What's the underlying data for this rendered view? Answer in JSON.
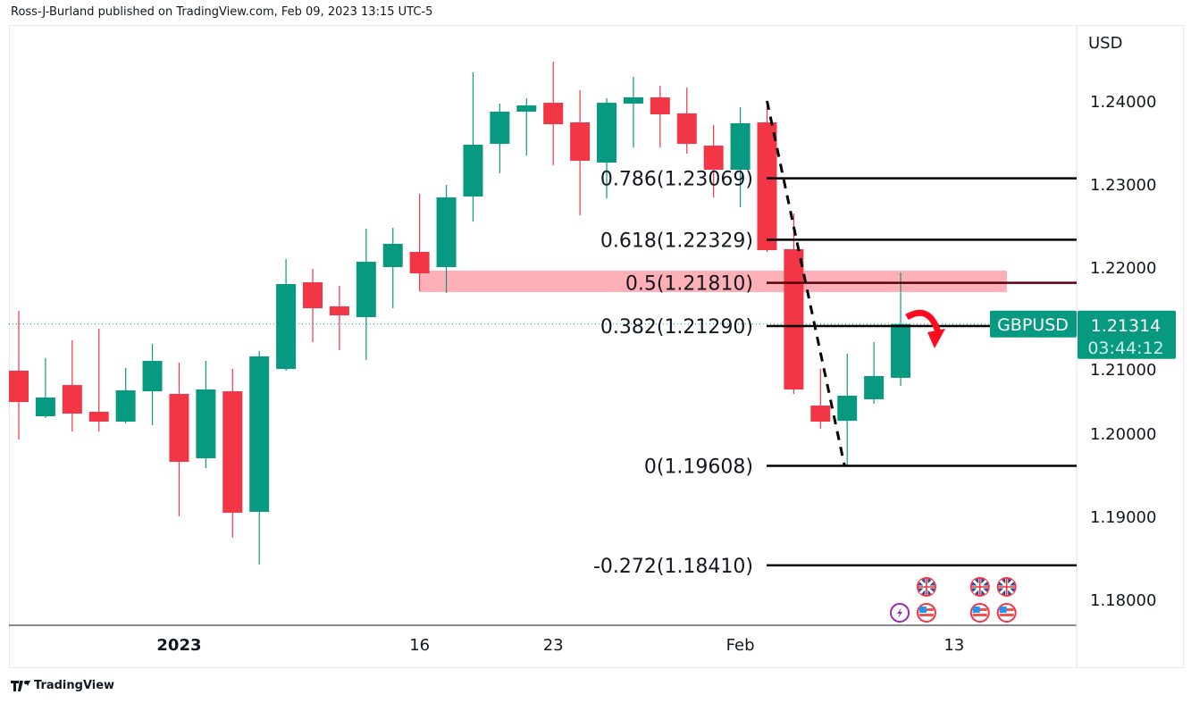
{
  "header": {
    "published": "Ross-J-Burland published on TradingView.com, Feb 09, 2023 13:15 UTC-5"
  },
  "footer": {
    "logo_text": "TradingView"
  },
  "colors": {
    "up": "#089981",
    "down": "#f23645",
    "zone": "#ffb0b6",
    "arrow": "#ff0a1e"
  },
  "chart_data": {
    "type": "candlestick",
    "symbol": "GBPUSD",
    "currency": "USD",
    "last_price": "1.21314",
    "countdown": "03:44:12",
    "ylim": [
      1.175,
      1.25
    ],
    "y_ticks": [
      "1.24000",
      "1.23000",
      "1.22000",
      "1.21000",
      "1.20000",
      "1.19000",
      "1.18000"
    ],
    "x_ticks": [
      {
        "label": "2023",
        "index": 6,
        "bold": true
      },
      {
        "label": "16",
        "index": 15
      },
      {
        "label": "23",
        "index": 20
      },
      {
        "label": "Feb",
        "index": 27
      },
      {
        "label": "13",
        "index": 35
      }
    ],
    "candles": [
      {
        "date": "2022-12-22",
        "o": 1.20753,
        "h": 1.21473,
        "l": 1.19925,
        "c": 1.20376
      },
      {
        "date": "2022-12-23",
        "o": 1.20204,
        "h": 1.20903,
        "l": 1.20183,
        "c": 1.2043
      },
      {
        "date": "2022-12-27",
        "o": 1.2058,
        "h": 1.21118,
        "l": 1.20021,
        "c": 1.20236
      },
      {
        "date": "2022-12-28",
        "o": 1.20258,
        "h": 1.21258,
        "l": 1.20021,
        "c": 1.2014
      },
      {
        "date": "2022-12-29",
        "o": 1.2014,
        "h": 1.20785,
        "l": 1.2012,
        "c": 1.20516
      },
      {
        "date": "2022-12-30",
        "o": 1.20505,
        "h": 1.21075,
        "l": 1.20097,
        "c": 1.20871
      },
      {
        "date": "2023-01-03",
        "o": 1.20473,
        "h": 1.20849,
        "l": 1.19,
        "c": 1.19656
      },
      {
        "date": "2023-01-04",
        "o": 1.19699,
        "h": 1.20871,
        "l": 1.1958,
        "c": 1.20527
      },
      {
        "date": "2023-01-05",
        "o": 1.20505,
        "h": 1.20774,
        "l": 1.18742,
        "c": 1.19043
      },
      {
        "date": "2023-01-06",
        "o": 1.19054,
        "h": 1.20989,
        "l": 1.18419,
        "c": 1.20925
      },
      {
        "date": "2023-01-09",
        "o": 1.20774,
        "h": 1.22097,
        "l": 1.20753,
        "c": 1.21796
      },
      {
        "date": "2023-01-10",
        "o": 1.21817,
        "h": 1.21978,
        "l": 1.21097,
        "c": 1.21505
      },
      {
        "date": "2023-01-11",
        "o": 1.21527,
        "h": 1.21774,
        "l": 1.21,
        "c": 1.21419
      },
      {
        "date": "2023-01-12",
        "o": 1.21398,
        "h": 1.22462,
        "l": 1.20882,
        "c": 1.22064
      },
      {
        "date": "2023-01-13",
        "o": 1.22,
        "h": 1.22473,
        "l": 1.21505,
        "c": 1.2228
      },
      {
        "date": "2023-01-16",
        "o": 1.22183,
        "h": 1.22882,
        "l": 1.2171,
        "c": 1.21925
      },
      {
        "date": "2023-01-17",
        "o": 1.22,
        "h": 1.22989,
        "l": 1.21688,
        "c": 1.22839
      },
      {
        "date": "2023-01-18",
        "o": 1.2285,
        "h": 1.24344,
        "l": 1.22548,
        "c": 1.23473
      },
      {
        "date": "2023-01-19",
        "o": 1.23484,
        "h": 1.23968,
        "l": 1.23129,
        "c": 1.23871
      },
      {
        "date": "2023-01-20",
        "o": 1.23871,
        "h": 1.24032,
        "l": 1.23344,
        "c": 1.23946
      },
      {
        "date": "2023-01-23",
        "o": 1.23978,
        "h": 1.24473,
        "l": 1.23226,
        "c": 1.2372
      },
      {
        "date": "2023-01-24",
        "o": 1.23742,
        "h": 1.24129,
        "l": 1.22624,
        "c": 1.2328
      },
      {
        "date": "2023-01-25",
        "o": 1.23258,
        "h": 1.24032,
        "l": 1.22828,
        "c": 1.23978
      },
      {
        "date": "2023-01-26",
        "o": 1.23968,
        "h": 1.2429,
        "l": 1.23441,
        "c": 1.24043
      },
      {
        "date": "2023-01-27",
        "o": 1.24043,
        "h": 1.24183,
        "l": 1.23441,
        "c": 1.23839
      },
      {
        "date": "2023-01-30",
        "o": 1.2385,
        "h": 1.24161,
        "l": 1.23366,
        "c": 1.23484
      },
      {
        "date": "2023-01-31",
        "o": 1.23462,
        "h": 1.2371,
        "l": 1.22839,
        "c": 1.23172
      },
      {
        "date": "2023-02-01",
        "o": 1.23172,
        "h": 1.23925,
        "l": 1.2272,
        "c": 1.23731
      },
      {
        "date": "2023-02-02",
        "o": 1.23742,
        "h": 1.24,
        "l": 1.22183,
        "c": 1.22204
      },
      {
        "date": "2023-02-03",
        "o": 1.22215,
        "h": 1.22645,
        "l": 1.20473,
        "c": 1.20527
      },
      {
        "date": "2023-02-06",
        "o": 1.20333,
        "h": 1.20774,
        "l": 1.20054,
        "c": 1.2014
      },
      {
        "date": "2023-02-07",
        "o": 1.2015,
        "h": 1.20957,
        "l": 1.19608,
        "c": 1.20452
      },
      {
        "date": "2023-02-08",
        "o": 1.20409,
        "h": 1.21097,
        "l": 1.20355,
        "c": 1.20688
      },
      {
        "date": "2023-02-09",
        "o": 1.20667,
        "h": 1.21935,
        "l": 1.2057,
        "c": 1.21314
      }
    ],
    "fib_levels": [
      {
        "label": "0.786(1.23069)",
        "price": 1.23069
      },
      {
        "label": "0.618(1.22329)",
        "price": 1.22329
      },
      {
        "label": "0.5(1.21810)",
        "price": 1.2181
      },
      {
        "label": "0.382(1.21290)",
        "price": 1.2129
      },
      {
        "label": "0(1.19608)",
        "price": 1.19608
      },
      {
        "label": "-0.272(1.18410)",
        "price": 1.1841
      }
    ],
    "resistance_zone": {
      "from": 1.21699,
      "to": 1.21957,
      "start_index": 15
    },
    "trend_line": {
      "from_index": 28,
      "from_price": 1.24,
      "to_index": 31,
      "to_price": 1.19608
    },
    "events": [
      {
        "icon": "lightning-icon",
        "index": 33,
        "row": 2
      },
      {
        "icon": "uk-flag-icon",
        "index": 34,
        "row": 1
      },
      {
        "icon": "us-flag-icon",
        "index": 34,
        "row": 2
      },
      {
        "icon": "uk-flag-icon",
        "index": 36,
        "row": 1
      },
      {
        "icon": "us-flag-icon",
        "index": 36,
        "row": 2
      },
      {
        "icon": "uk-flag-icon",
        "index": 37,
        "row": 1
      },
      {
        "icon": "us-flag-icon",
        "index": 37,
        "row": 2
      }
    ]
  }
}
